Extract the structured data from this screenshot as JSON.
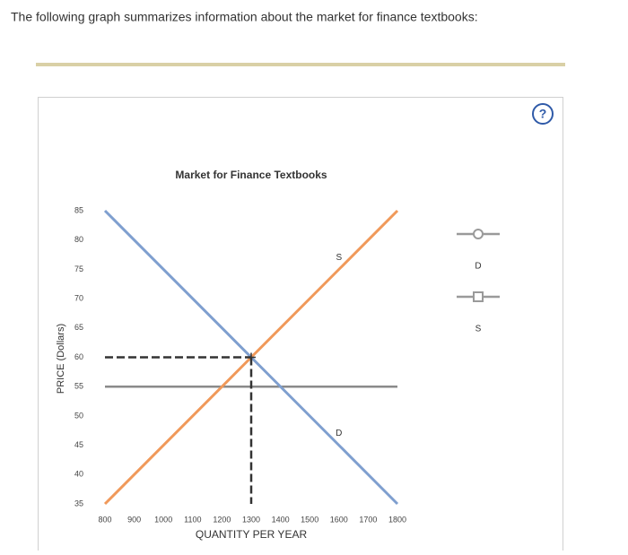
{
  "prompt": "The following graph summarizes information about the market for finance textbooks:",
  "help_icon": "?",
  "chart_data": {
    "type": "line",
    "title": "Market for Finance Textbooks",
    "x_label": "QUANTITY PER YEAR",
    "y_label": "PRICE (Dollars)",
    "x": [
      800,
      1300,
      1800
    ],
    "series": [
      {
        "name": "D",
        "color": "#7f9fcf",
        "marker": "circle",
        "values": [
          85,
          60,
          35
        ]
      },
      {
        "name": "S",
        "color": "#f0995a",
        "marker": "square",
        "values": [
          35,
          60,
          85
        ]
      }
    ],
    "price_line": {
      "value": 55,
      "color": "#8a8a8a"
    },
    "guides": {
      "x": 1300,
      "y": 60,
      "color": "#333333"
    },
    "xlim": [
      800,
      1800
    ],
    "xticks": [
      800,
      900,
      1000,
      1100,
      1200,
      1300,
      1400,
      1500,
      1600,
      1700,
      1800
    ],
    "ylim": [
      35,
      85
    ],
    "yticks": [
      35,
      40,
      45,
      50,
      55,
      60,
      65,
      70,
      75,
      80,
      85
    ],
    "legend_color": "#9a9a9a"
  }
}
